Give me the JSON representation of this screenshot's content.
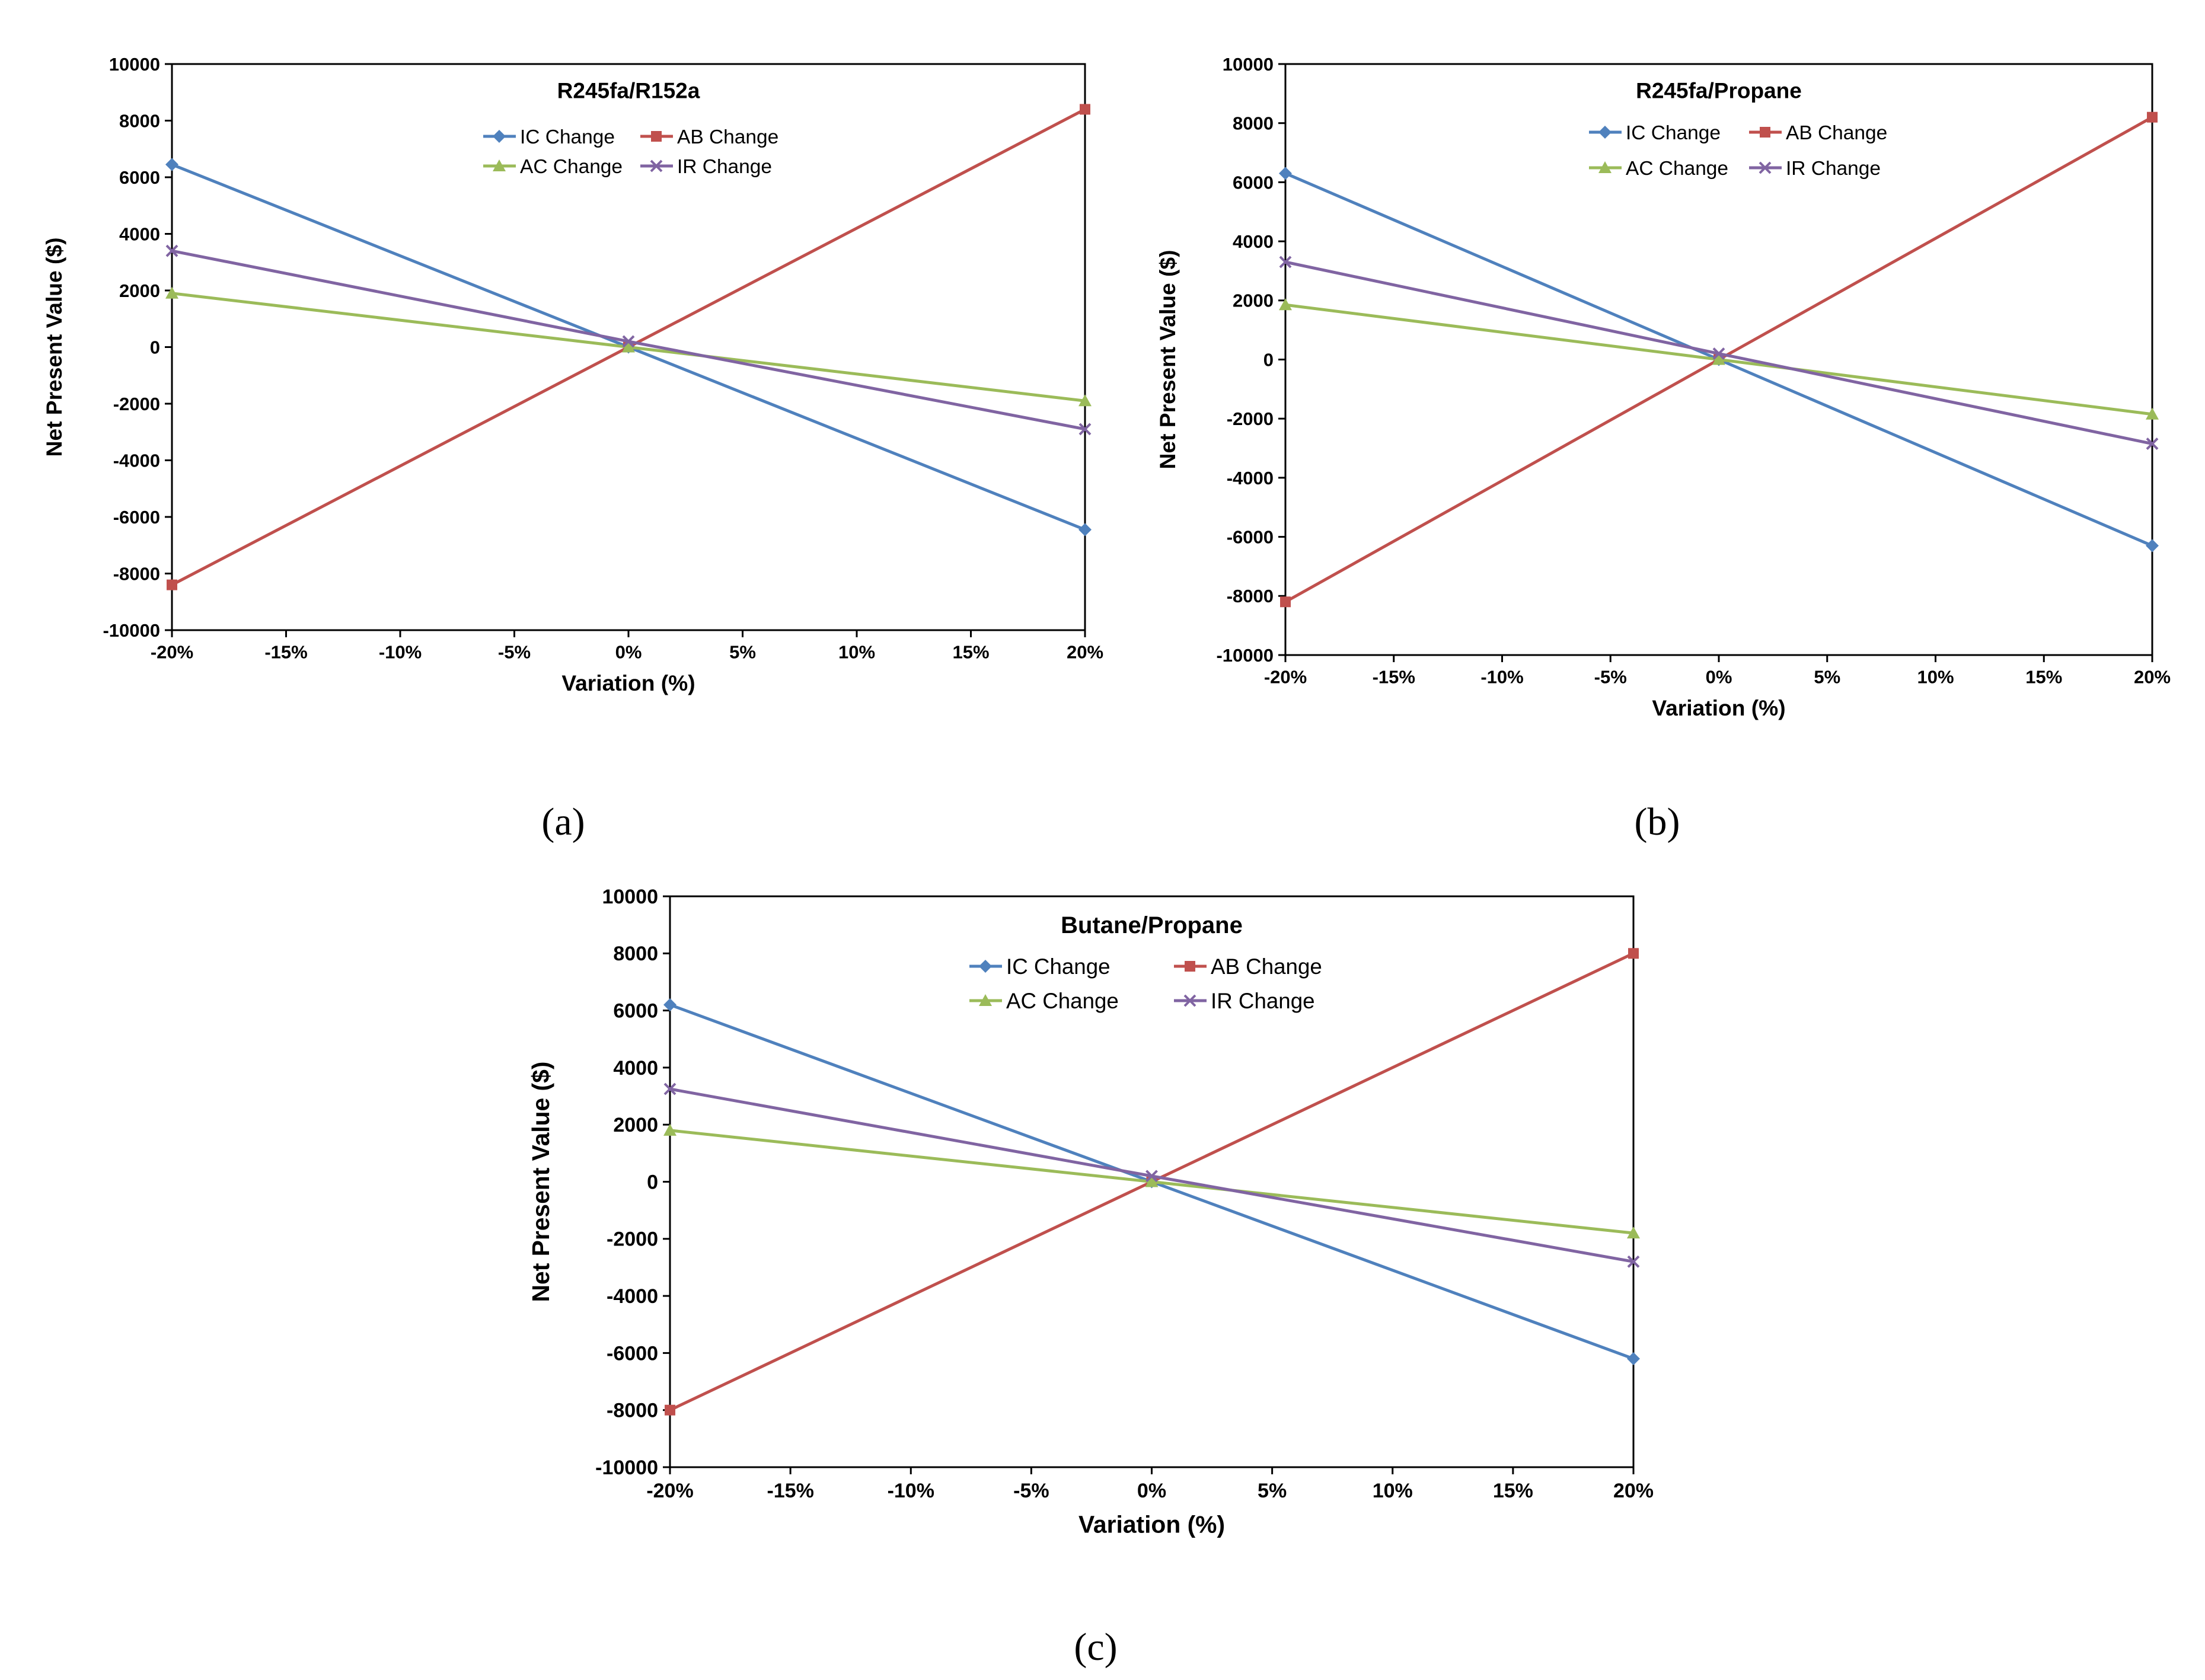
{
  "chart_data": [
    {
      "type": "line",
      "panel_label": "(a)",
      "title": "R245fa/R152a",
      "xlabel": "Variation (%)",
      "ylabel": "Net Present Value ($)",
      "x": [
        -20,
        0,
        20
      ],
      "x_tick_labels": [
        "-20%",
        "-15%",
        "-10%",
        "-5%",
        "0%",
        "5%",
        "10%",
        "15%",
        "20%"
      ],
      "x_ticks": [
        -20,
        -15,
        -10,
        -5,
        0,
        5,
        10,
        15,
        20
      ],
      "xlim": [
        -20,
        20
      ],
      "ylim": [
        -10000,
        10000
      ],
      "y_ticks": [
        -10000,
        -8000,
        -6000,
        -4000,
        -2000,
        0,
        2000,
        4000,
        6000,
        8000,
        10000
      ],
      "y_tick_labels": [
        "-10000",
        "-8000",
        "-6000",
        "-4000",
        "-2000",
        "0",
        "2000",
        "4000",
        "6000",
        "8000",
        "10000"
      ],
      "legend_position": "top-center",
      "series": [
        {
          "name": "IC Change",
          "values": [
            6450,
            0,
            -6450
          ],
          "color": "#4f81bd",
          "marker": "diamond"
        },
        {
          "name": "AB Change",
          "values": [
            -8400,
            0,
            8400
          ],
          "color": "#c0504d",
          "marker": "square"
        },
        {
          "name": "AC Change",
          "values": [
            1900,
            0,
            -1900
          ],
          "color": "#9bbb59",
          "marker": "triangle"
        },
        {
          "name": "IR Change",
          "values": [
            3400,
            200,
            -2900
          ],
          "color": "#8064a2",
          "marker": "x"
        }
      ]
    },
    {
      "type": "line",
      "panel_label": "(b)",
      "title": "R245fa/Propane",
      "xlabel": "Variation (%)",
      "ylabel": "Net Present Value ($)",
      "x": [
        -20,
        0,
        20
      ],
      "x_tick_labels": [
        "-20%",
        "-15%",
        "-10%",
        "-5%",
        "0%",
        "5%",
        "10%",
        "15%",
        "20%"
      ],
      "x_ticks": [
        -20,
        -15,
        -10,
        -5,
        0,
        5,
        10,
        15,
        20
      ],
      "xlim": [
        -20,
        20
      ],
      "ylim": [
        -10000,
        10000
      ],
      "y_ticks": [
        -10000,
        -8000,
        -6000,
        -4000,
        -2000,
        0,
        2000,
        4000,
        6000,
        8000,
        10000
      ],
      "y_tick_labels": [
        "-10000",
        "-8000",
        "-6000",
        "-4000",
        "-2000",
        "0",
        "2000",
        "4000",
        "6000",
        "8000",
        "10000"
      ],
      "legend_position": "top-center",
      "series": [
        {
          "name": "IC Change",
          "values": [
            6300,
            0,
            -6300
          ],
          "color": "#4f81bd",
          "marker": "diamond"
        },
        {
          "name": "AB Change",
          "values": [
            -8200,
            0,
            8200
          ],
          "color": "#c0504d",
          "marker": "square"
        },
        {
          "name": "AC Change",
          "values": [
            1850,
            0,
            -1850
          ],
          "color": "#9bbb59",
          "marker": "triangle"
        },
        {
          "name": "IR Change",
          "values": [
            3300,
            200,
            -2850
          ],
          "color": "#8064a2",
          "marker": "x"
        }
      ]
    },
    {
      "type": "line",
      "panel_label": "(c)",
      "title": "Butane/Propane",
      "xlabel": "Variation (%)",
      "ylabel": "Net Present Value ($)",
      "x": [
        -20,
        0,
        20
      ],
      "x_tick_labels": [
        "-20%",
        "-15%",
        "-10%",
        "-5%",
        "0%",
        "5%",
        "10%",
        "15%",
        "20%"
      ],
      "x_ticks": [
        -20,
        -15,
        -10,
        -5,
        0,
        5,
        10,
        15,
        20
      ],
      "xlim": [
        -20,
        20
      ],
      "ylim": [
        -10000,
        10000
      ],
      "y_ticks": [
        -10000,
        -8000,
        -6000,
        -4000,
        -2000,
        0,
        2000,
        4000,
        6000,
        8000,
        10000
      ],
      "y_tick_labels": [
        "-10000",
        "-8000",
        "-6000",
        "-4000",
        "-2000",
        "0",
        "2000",
        "4000",
        "6000",
        "8000",
        "10000"
      ],
      "legend_position": "top-center",
      "series": [
        {
          "name": "IC Change",
          "values": [
            6200,
            0,
            -6200
          ],
          "color": "#4f81bd",
          "marker": "diamond"
        },
        {
          "name": "AB Change",
          "values": [
            -8000,
            0,
            8000
          ],
          "color": "#c0504d",
          "marker": "square"
        },
        {
          "name": "AC Change",
          "values": [
            1800,
            0,
            -1800
          ],
          "color": "#9bbb59",
          "marker": "triangle"
        },
        {
          "name": "IR Change",
          "values": [
            3250,
            200,
            -2800
          ],
          "color": "#8064a2",
          "marker": "x"
        }
      ]
    }
  ]
}
